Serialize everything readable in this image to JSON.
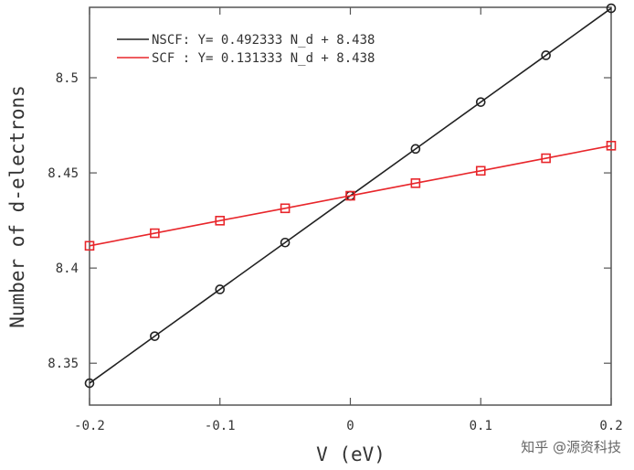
{
  "chart_data": {
    "type": "line",
    "xlabel": "V (eV)",
    "ylabel": "Number of d-electrons",
    "xlim": [
      -0.2,
      0.2
    ],
    "ylim": [
      8.328,
      8.537
    ],
    "x_ticks": [
      -0.2,
      -0.1,
      0,
      0.1,
      0.2
    ],
    "x_tick_labels": [
      "-0.2",
      "-0.1",
      "0",
      "0.1",
      "0.2"
    ],
    "y_ticks": [
      8.35,
      8.4,
      8.45,
      8.5
    ],
    "y_tick_labels": [
      "8.35",
      "8.4",
      "8.45",
      "8.5"
    ],
    "x": [
      -0.2,
      -0.15,
      -0.1,
      -0.05,
      0,
      0.05,
      0.1,
      0.15,
      0.2
    ],
    "series": [
      {
        "name": "NSCF: Y= 0.492333 N_d + 8.438",
        "color": "#222222",
        "marker": "circle",
        "values": [
          8.3395,
          8.3642,
          8.3888,
          8.4134,
          8.438,
          8.4626,
          8.4872,
          8.5118,
          8.5365
        ]
      },
      {
        "name": "SCF : Y= 0.131333 N_d + 8.438",
        "color": "#e8262b",
        "marker": "square",
        "values": [
          8.4117,
          8.4183,
          8.4249,
          8.4314,
          8.438,
          8.4446,
          8.4511,
          8.4577,
          8.4643
        ]
      }
    ],
    "legend_position": "top-left",
    "grid": false
  },
  "watermark": "知乎 @源资科技"
}
